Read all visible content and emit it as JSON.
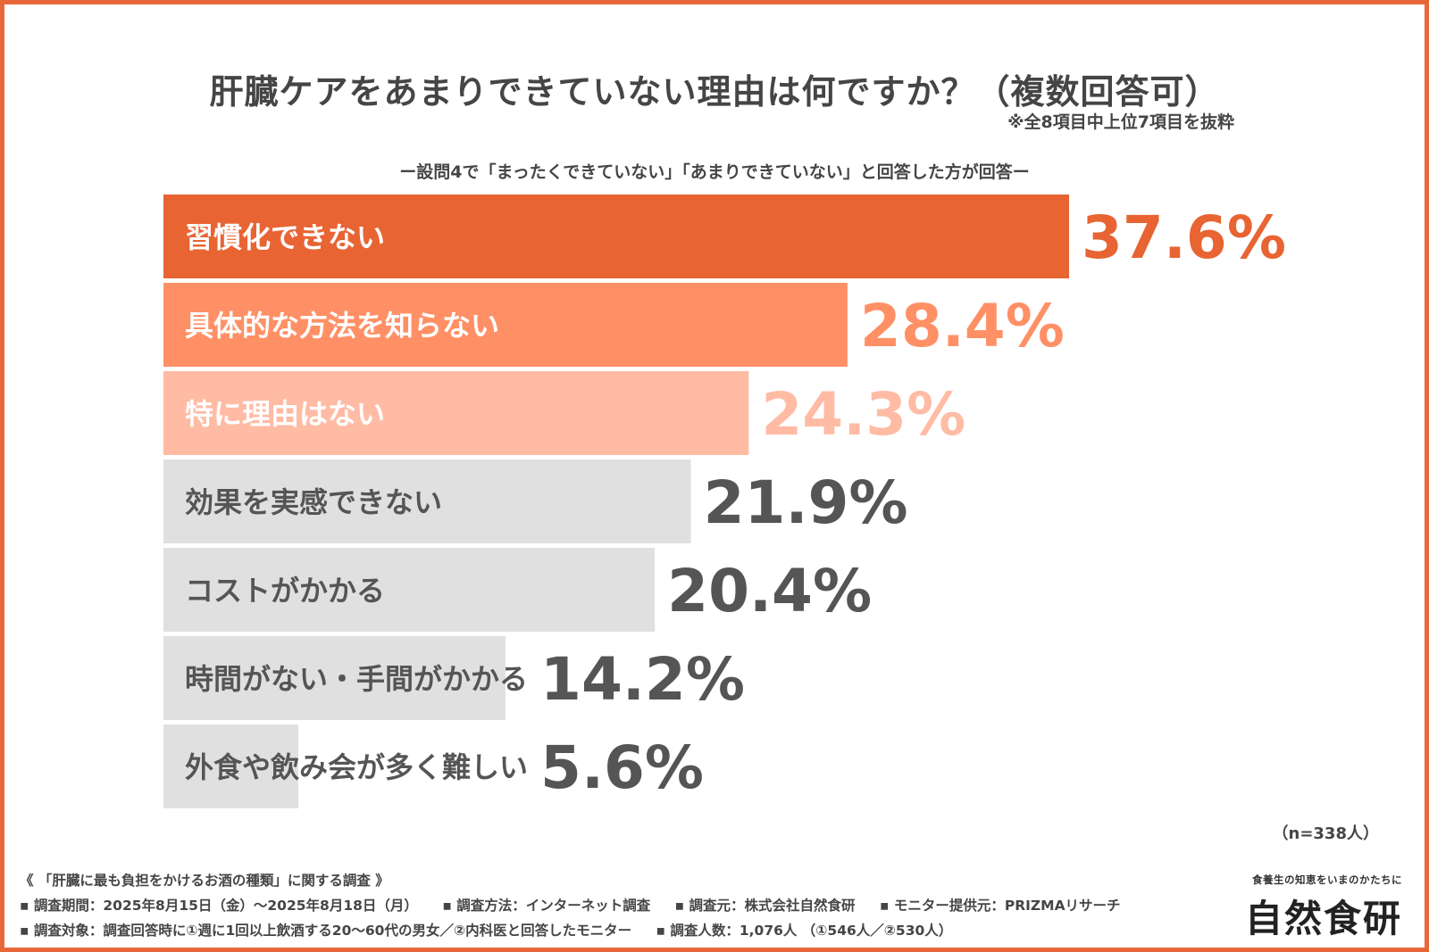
{
  "header": {
    "title": "肝臓ケアをあまりできていない理由は何ですか？（複数回答可）",
    "note": "※全8項目中上位7項目を抜粋",
    "subtitle": "ー設問4で「まったくできていない」「あまりできていない」と回答した方が回答ー"
  },
  "chart_data": {
    "type": "bar",
    "orientation": "horizontal",
    "unit": "%",
    "categories": [
      "習慣化できない",
      "具体的な方法を知らない",
      "特に理由はない",
      "効果を実感できない",
      "コストがかかる",
      "時間がない・手間がかかる",
      "外食や飲み会が多く難しい"
    ],
    "values": [
      37.6,
      28.4,
      24.3,
      21.9,
      20.4,
      14.2,
      5.6
    ],
    "value_labels": [
      "37.6%",
      "28.4%",
      "24.3%",
      "21.9%",
      "20.4%",
      "14.2%",
      "5.6%"
    ],
    "bar_colors": [
      "#e86433",
      "#ff9066",
      "#ffbba4",
      "#e0e0e0",
      "#e0e0e0",
      "#e0e0e0",
      "#e0e0e0"
    ],
    "label_colors": [
      "#ffffff",
      "#ffffff",
      "#ffffff",
      "#555555",
      "#555555",
      "#555555",
      "#555555"
    ],
    "value_colors": [
      "#e86433",
      "#ff9066",
      "#ffbba4",
      "#555555",
      "#555555",
      "#555555",
      "#555555"
    ],
    "xlim": [
      0,
      40
    ]
  },
  "sample": "（n=338人）",
  "footer": {
    "survey_title": "《 「肝臓に最も負担をかけるお酒の種類」に関する調査 》",
    "line2": [
      "▪ 調査期間：2025年8月15日（金）〜2025年8月18日（月）",
      "▪ 調査方法：インターネット調査",
      "▪ 調査元：株式会社自然食研",
      "▪ モニター提供元：PRIZMAリサーチ"
    ],
    "line3": [
      "▪ 調査対象：調査回答時に①週に1回以上飲酒する20〜60代の男女／②内科医と回答したモニター",
      "▪ 調査人数：1,076人 （①546人／②530人）"
    ]
  },
  "brand": {
    "tagline": "食養生の知恵をいまのかたちに",
    "logo_text": "自然食研"
  }
}
